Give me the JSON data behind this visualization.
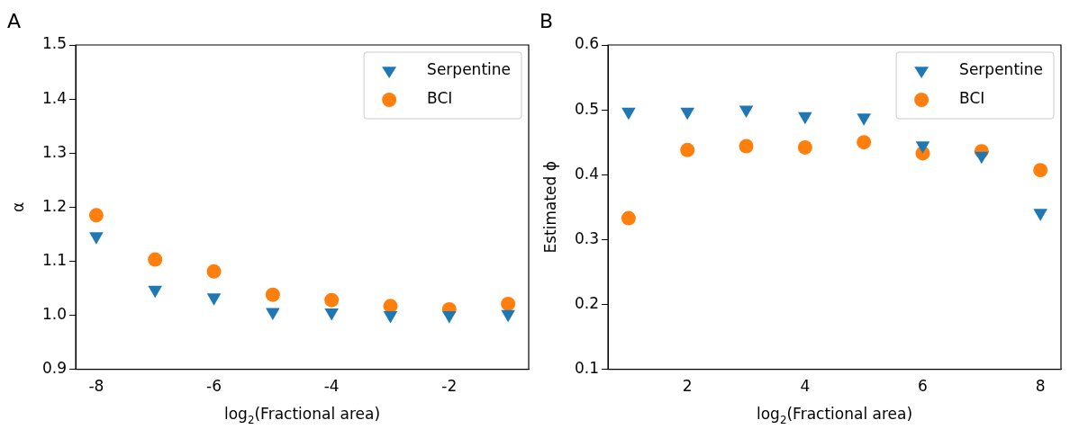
{
  "chart_data": [
    {
      "type": "scatter",
      "annotations": [
        "A"
      ],
      "xlabel": "log$_{2}$(Fractional area)",
      "ylabel": "α",
      "xlim": [
        -8.35,
        -0.65
      ],
      "xticks": [
        -8,
        -6,
        -4,
        -2
      ],
      "ylim": [
        0.9,
        1.5
      ],
      "yticks": [
        0.9,
        {
          "value": 1,
          "label": "1.0"
        },
        1.1,
        1.2,
        1.3,
        1.4,
        1.5
      ],
      "grid": false,
      "legend": "top right",
      "series": [
        {
          "name": "Serpentine",
          "color": "#1f77b4",
          "marker": "triangle",
          "x": [
            -8,
            -7,
            -6,
            -5,
            -4,
            -3,
            -2,
            -1
          ],
          "values": [
            1.146,
            1.047,
            1.033,
            1.006,
            1.005,
            1.0,
            1.0,
            1.002
          ]
        },
        {
          "name": "BCI",
          "color": "#ff7f0e",
          "marker": "circle",
          "x": [
            -8,
            -7,
            -6,
            -5,
            -4,
            -3,
            -2,
            -1
          ],
          "values": [
            1.185,
            1.103,
            1.081,
            1.038,
            1.028,
            1.017,
            1.011,
            1.021
          ]
        }
      ]
    },
    {
      "type": "scatter",
      "annotations": [
        "B"
      ],
      "xlabel": "log$_{2}$(Fractional area)",
      "ylabel": "Estimated ϕ",
      "xlim": [
        0.65,
        8.35
      ],
      "xticks": [
        2,
        4,
        6,
        8
      ],
      "ylim": [
        0.1,
        0.6
      ],
      "yticks": [
        0.1,
        0.2,
        0.3,
        0.4,
        0.5,
        0.6
      ],
      "grid": false,
      "legend": "top right",
      "series": [
        {
          "name": "Serpentine",
          "color": "#1f77b4",
          "marker": "triangle",
          "x": [
            1,
            2,
            3,
            4,
            5,
            6,
            7,
            8
          ],
          "values": [
            0.497,
            0.497,
            0.5,
            0.49,
            0.488,
            0.445,
            0.429,
            0.341
          ]
        },
        {
          "name": "BCI",
          "color": "#ff7f0e",
          "marker": "circle",
          "x": [
            1,
            2,
            3,
            4,
            5,
            6,
            7,
            8
          ],
          "values": [
            0.333,
            0.438,
            0.444,
            0.442,
            0.45,
            0.433,
            0.436,
            0.407
          ]
        }
      ]
    }
  ]
}
